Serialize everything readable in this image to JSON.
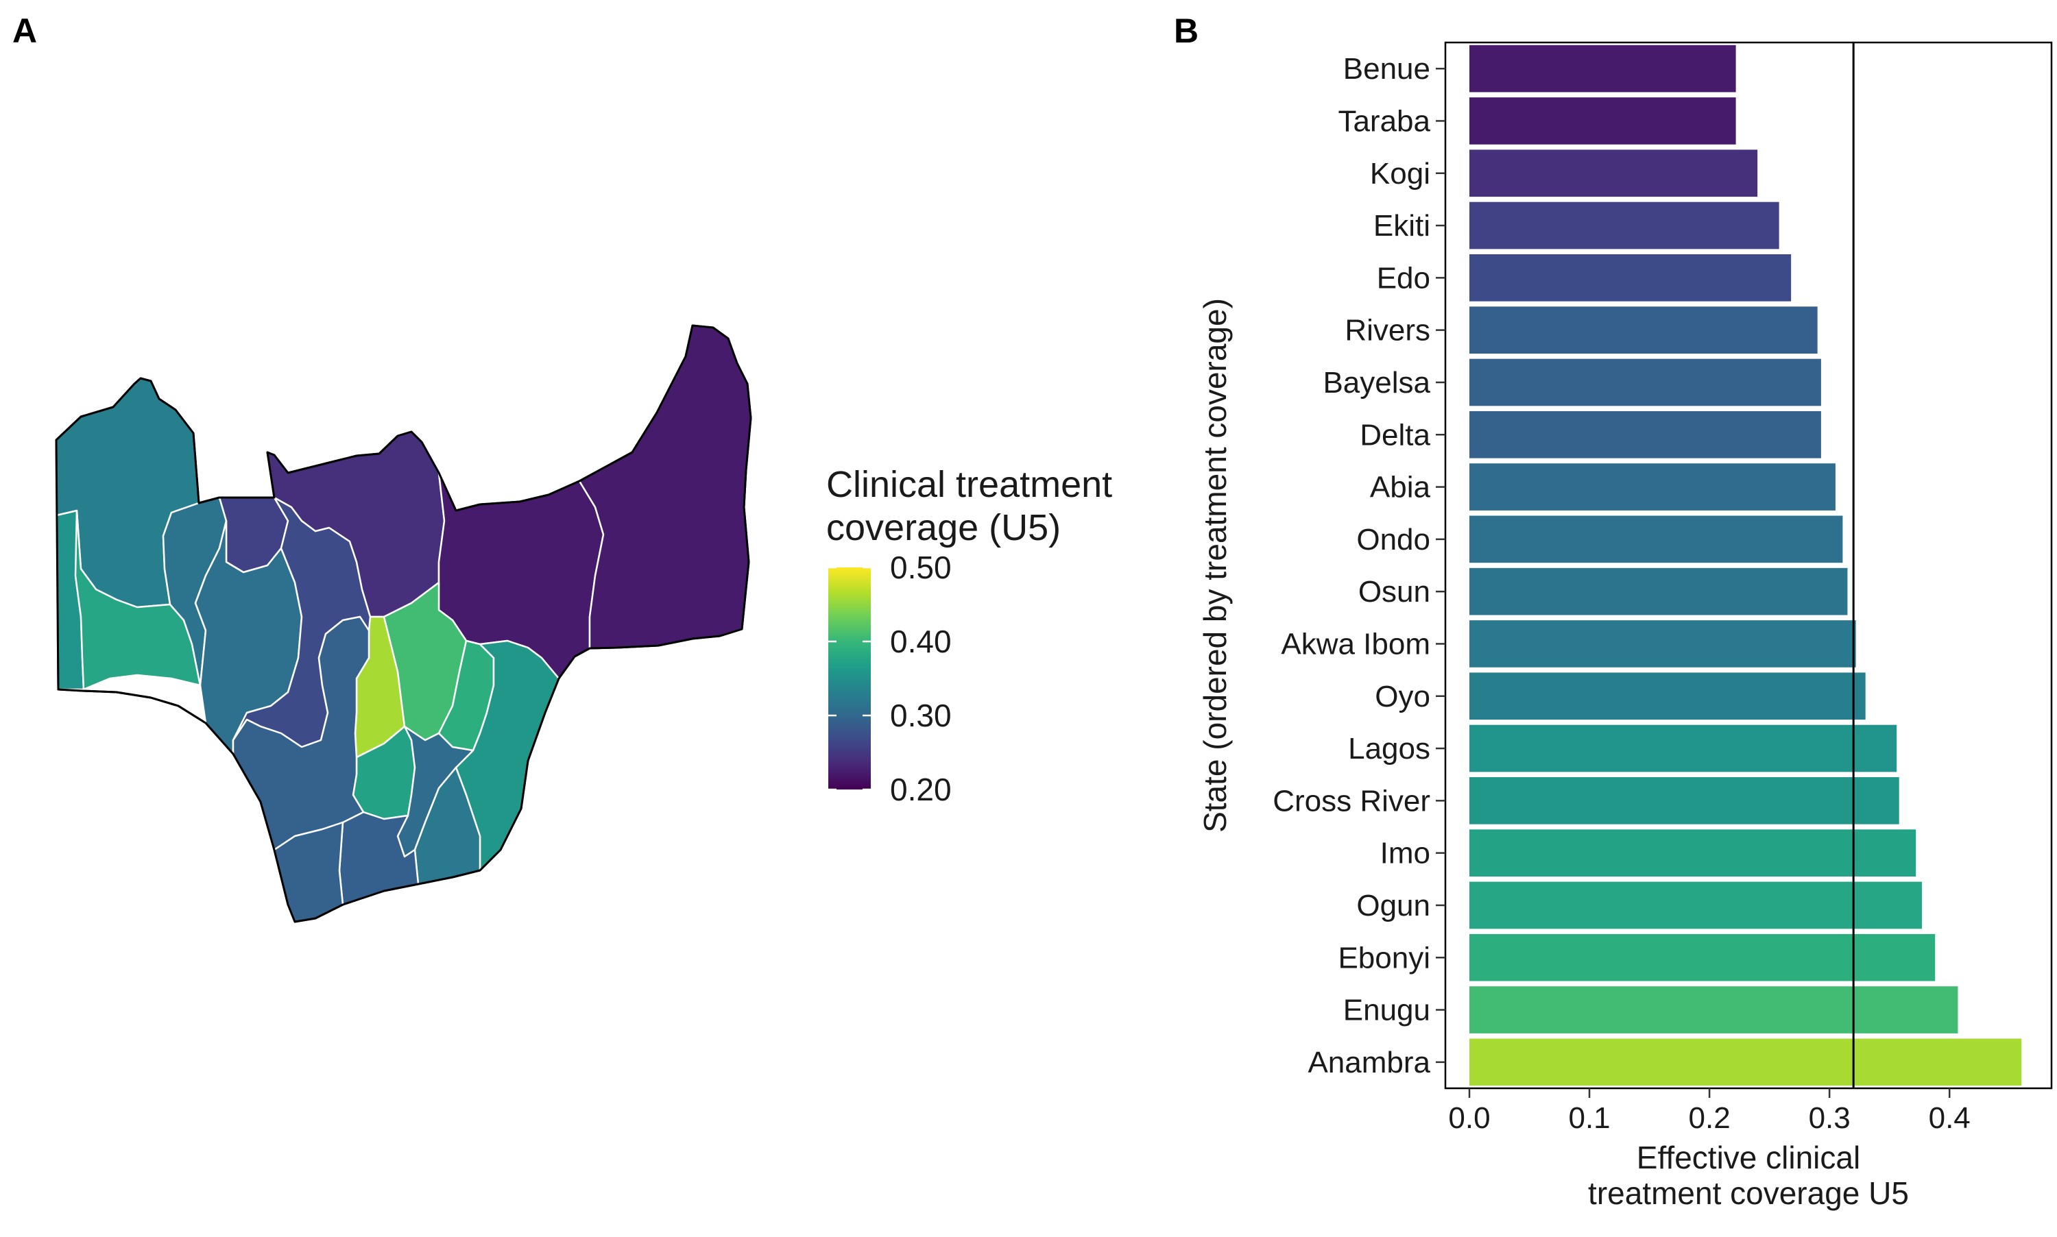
{
  "panel_a": {
    "label": "A",
    "legend": {
      "title_line1": "Clinical treatment",
      "title_line2": "coverage (U5)",
      "ticks": [
        "0.50",
        "0.40",
        "0.30",
        "0.20"
      ],
      "range": [
        0.2,
        0.5
      ]
    },
    "map": {
      "regions": [
        {
          "name": "Benue",
          "value": 0.222
        },
        {
          "name": "Taraba",
          "value": 0.222
        },
        {
          "name": "Kogi",
          "value": 0.24
        },
        {
          "name": "Ekiti",
          "value": 0.258
        },
        {
          "name": "Edo",
          "value": 0.268
        },
        {
          "name": "Rivers",
          "value": 0.29
        },
        {
          "name": "Bayelsa",
          "value": 0.293
        },
        {
          "name": "Delta",
          "value": 0.293
        },
        {
          "name": "Abia",
          "value": 0.305
        },
        {
          "name": "Ondo",
          "value": 0.311
        },
        {
          "name": "Osun",
          "value": 0.315
        },
        {
          "name": "Akwa Ibom",
          "value": 0.322
        },
        {
          "name": "Oyo",
          "value": 0.33
        },
        {
          "name": "Lagos",
          "value": 0.356
        },
        {
          "name": "Cross River",
          "value": 0.358
        },
        {
          "name": "Imo",
          "value": 0.372
        },
        {
          "name": "Ogun",
          "value": 0.377
        },
        {
          "name": "Ebonyi",
          "value": 0.388
        },
        {
          "name": "Enugu",
          "value": 0.407
        },
        {
          "name": "Anambra",
          "value": 0.46
        }
      ]
    }
  },
  "panel_b": {
    "label": "B"
  },
  "chart_data": {
    "type": "bar",
    "orientation": "horizontal",
    "categories": [
      "Benue",
      "Taraba",
      "Kogi",
      "Ekiti",
      "Edo",
      "Rivers",
      "Bayelsa",
      "Delta",
      "Abia",
      "Ondo",
      "Osun",
      "Akwa Ibom",
      "Oyo",
      "Lagos",
      "Cross River",
      "Imo",
      "Ogun",
      "Ebonyi",
      "Enugu",
      "Anambra"
    ],
    "values": [
      0.222,
      0.222,
      0.24,
      0.258,
      0.268,
      0.29,
      0.293,
      0.293,
      0.305,
      0.311,
      0.315,
      0.322,
      0.33,
      0.356,
      0.358,
      0.372,
      0.377,
      0.388,
      0.407,
      0.46
    ],
    "xlabel_line1": "Effective clinical",
    "xlabel_line2": "treatment coverage U5",
    "ylabel": "State (ordered by treatment coverage)",
    "xlim": [
      -0.02,
      0.485
    ],
    "xticks": [
      0.0,
      0.1,
      0.2,
      0.3,
      0.4
    ],
    "xtick_labels": [
      "0.0",
      "0.1",
      "0.2",
      "0.3",
      "0.4"
    ],
    "reference_line": 0.32,
    "color_scale": "viridis",
    "color_range": [
      0.2,
      0.5
    ],
    "grid": false
  }
}
